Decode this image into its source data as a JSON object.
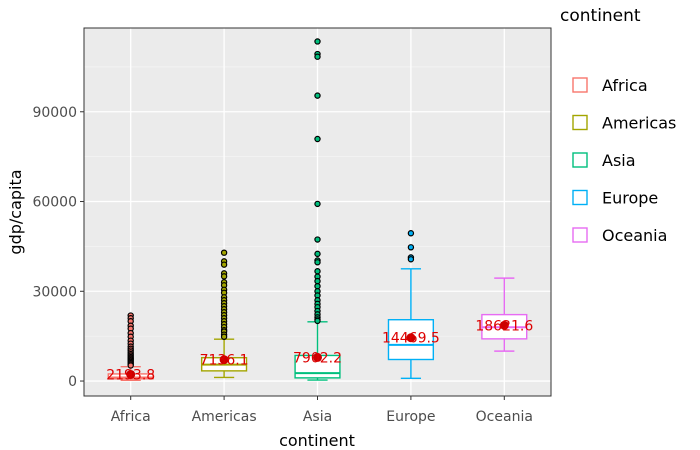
{
  "chart_data": {
    "type": "box",
    "xlabel": "continent",
    "ylabel": "gdp/capita",
    "ylim": [
      -5000,
      118000
    ],
    "y_ticks": [
      0,
      30000,
      60000,
      90000
    ],
    "y_tick_labels": [
      "0",
      "30000",
      "60000",
      "90000"
    ],
    "grid": true,
    "legend": {
      "title": "continent",
      "placement": "right",
      "entries": [
        "Africa",
        "Americas",
        "Asia",
        "Europe",
        "Oceania"
      ]
    },
    "categories": [
      "Africa",
      "Americas",
      "Asia",
      "Europe",
      "Oceania"
    ],
    "colors": [
      "#F8766D",
      "#A3A500",
      "#00BF7D",
      "#00B0F6",
      "#E76BF3"
    ],
    "boxes": [
      {
        "category": "Africa",
        "whisker_low": 240,
        "q1": 760,
        "median": 1190,
        "q3": 2380,
        "whisker_high": 4800,
        "mean": 2193.8,
        "mean_label": "2193.8",
        "outliers": [
          21900,
          21000,
          20000,
          18500,
          17500,
          16000,
          14800,
          13500,
          12500,
          11500,
          10800,
          10200,
          9600,
          9000,
          8500,
          8000,
          7600,
          7200,
          6800,
          6400,
          6000,
          5600,
          5200
        ]
      },
      {
        "category": "Americas",
        "whisker_low": 1200,
        "q1": 3400,
        "median": 5500,
        "q3": 7800,
        "whisker_high": 14000,
        "mean": 7136.1,
        "mean_label": "7136.1",
        "outliers": [
          42900,
          40000,
          38900,
          36000,
          35000,
          33000,
          32000,
          30500,
          29500,
          28000,
          27000,
          26000,
          25000,
          24000,
          23000,
          22000,
          21000,
          20000,
          19000,
          18000,
          17000,
          16500,
          15500,
          14800
        ]
      },
      {
        "category": "Asia",
        "whisker_low": 330,
        "q1": 1060,
        "median": 2650,
        "q3": 8550,
        "whisker_high": 19800,
        "mean": 7902.2,
        "mean_label": "7902.2",
        "outliers": [
          113500,
          109300,
          108400,
          95400,
          80900,
          59200,
          47300,
          42500,
          40300,
          39700,
          36700,
          34900,
          33400,
          31700,
          30000,
          28600,
          27000,
          25800,
          24700,
          23400,
          22300,
          21300,
          20600,
          20100
        ]
      },
      {
        "category": "Europe",
        "whisker_low": 900,
        "q1": 7200,
        "median": 12100,
        "q3": 20500,
        "whisker_high": 37500,
        "mean": 14469.5,
        "mean_label": "14469.5",
        "outliers": [
          49400,
          44700,
          41300,
          40700
        ]
      },
      {
        "category": "Oceania",
        "whisker_low": 10000,
        "q1": 14100,
        "median": 17980,
        "q3": 22200,
        "whisker_high": 34400,
        "mean": 18621.6,
        "mean_label": "18621.6",
        "outliers": []
      }
    ]
  }
}
